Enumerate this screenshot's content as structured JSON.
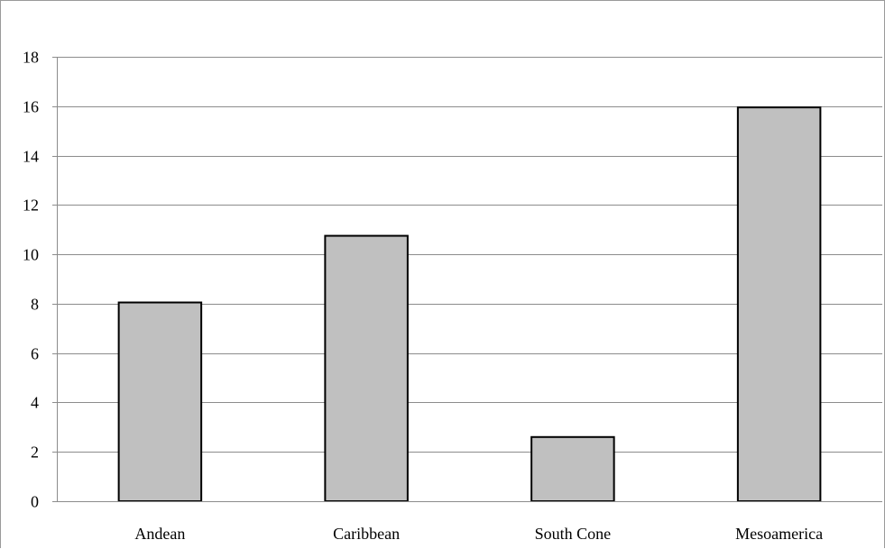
{
  "chart_data": {
    "type": "bar",
    "categories": [
      "Andean",
      "Caribbean",
      "South Cone",
      "Mesoamerica"
    ],
    "values": [
      8.05,
      10.75,
      2.6,
      15.95
    ],
    "title": "",
    "xlabel": "",
    "ylabel": "",
    "ylim": [
      0,
      18
    ],
    "yticks": [
      "0",
      "2",
      "4",
      "6",
      "8",
      "10",
      "12",
      "14",
      "16",
      "18"
    ],
    "grid": true,
    "legend": "none",
    "colors": {
      "bar_fill": "#c0c0c0",
      "bar_stroke": "#000000",
      "grid": "#8c8c8c",
      "axis": "#8c8c8c"
    }
  }
}
